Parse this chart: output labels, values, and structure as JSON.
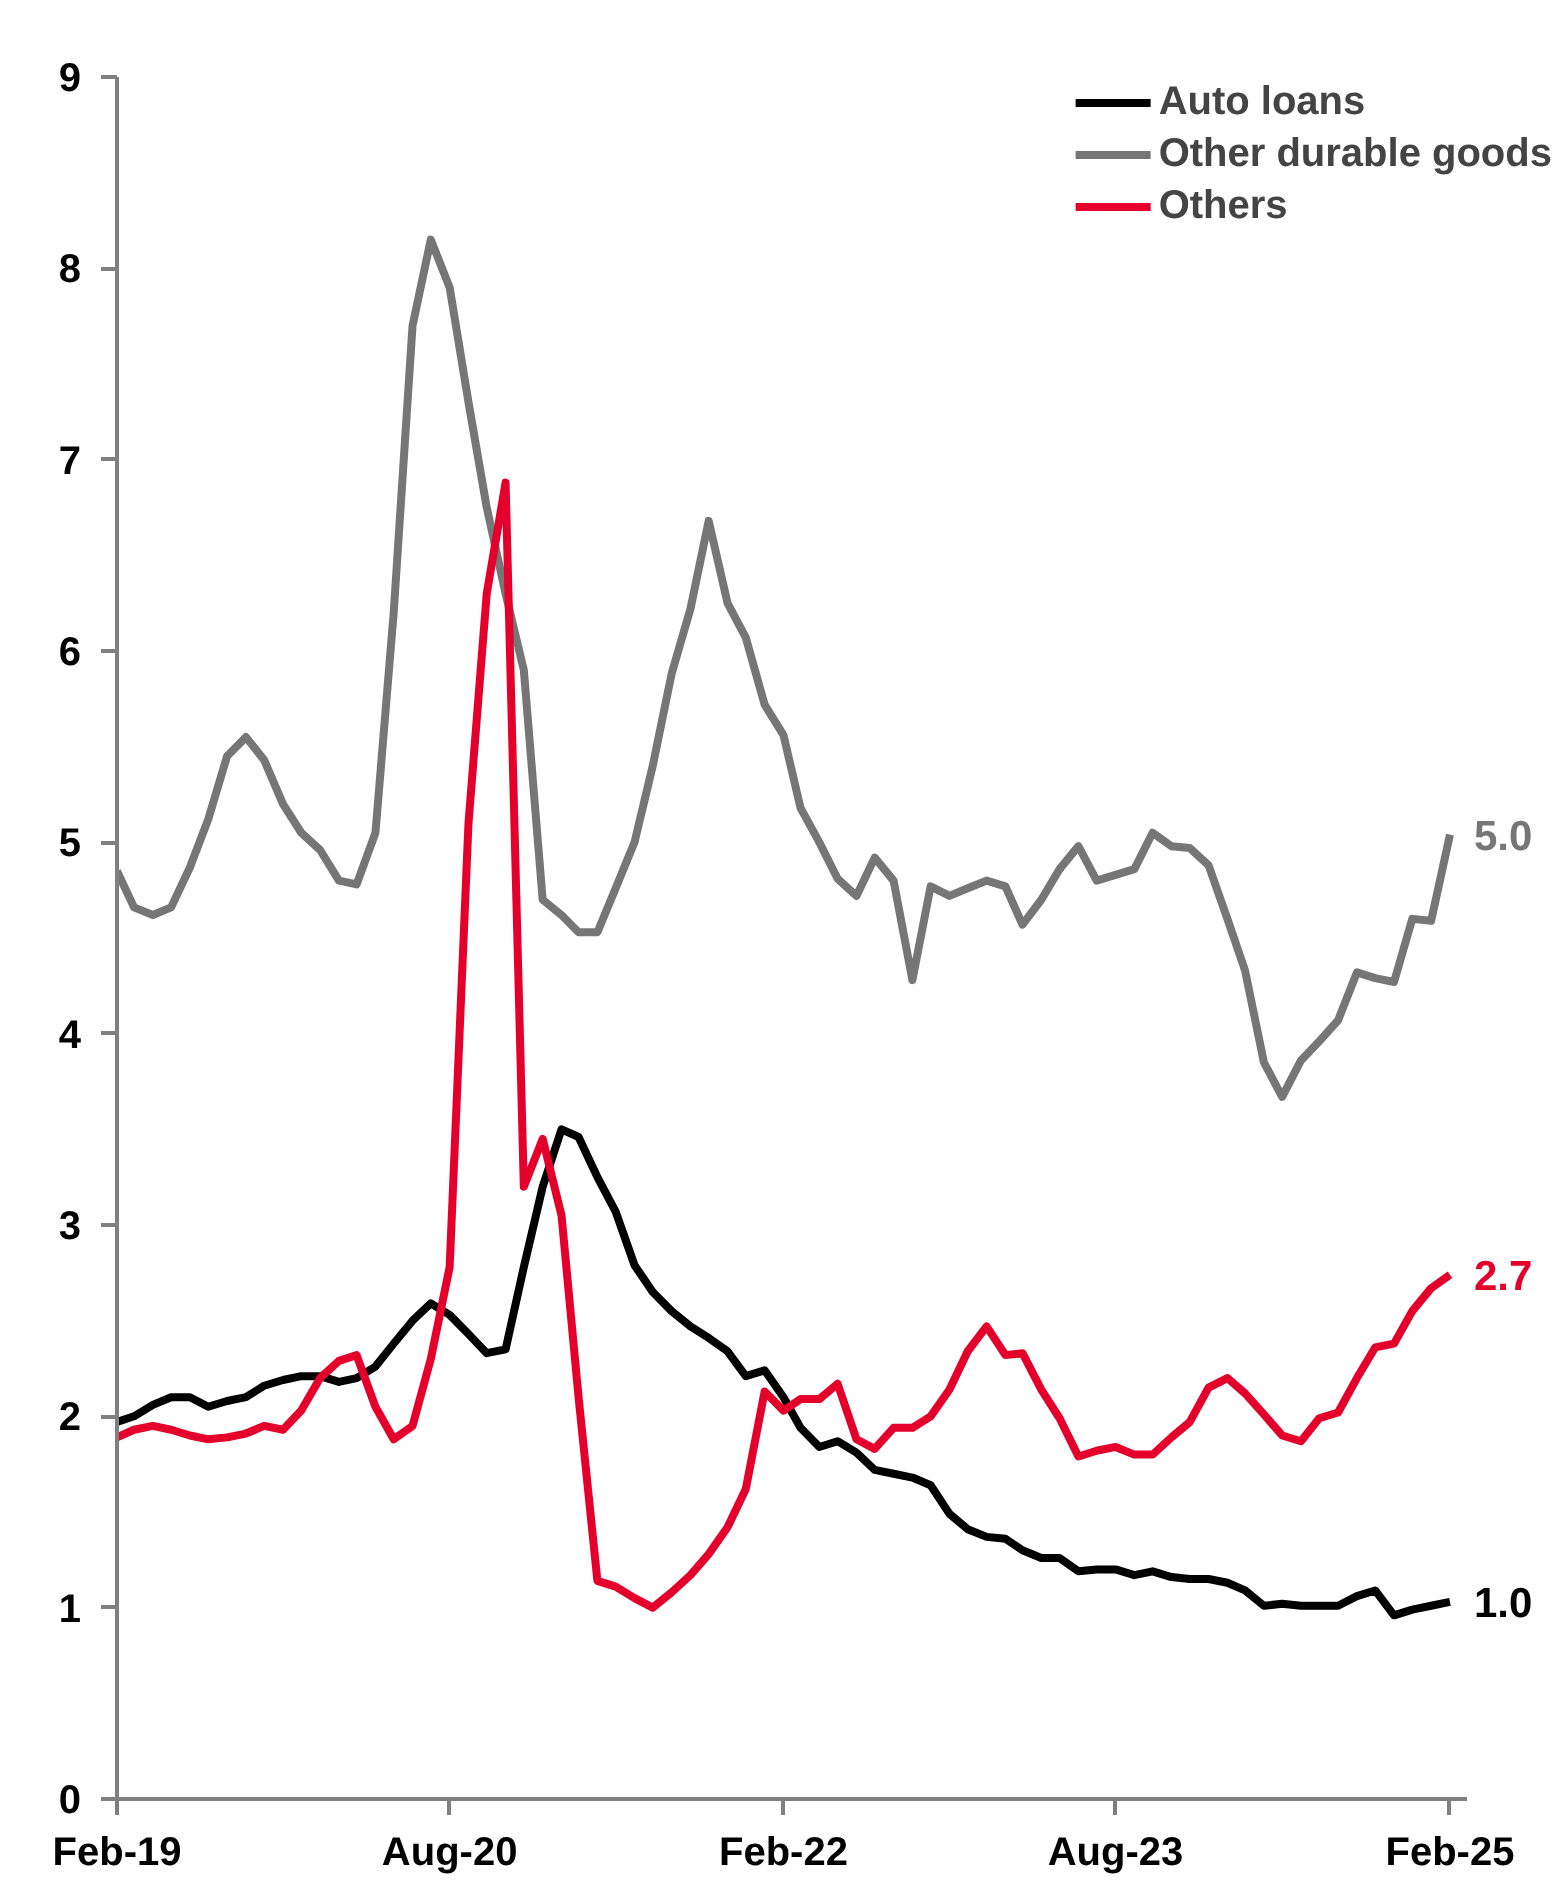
{
  "chart_data": {
    "type": "line",
    "x": [
      "2019-02",
      "2019-03",
      "2019-04",
      "2019-05",
      "2019-06",
      "2019-07",
      "2019-08",
      "2019-09",
      "2019-10",
      "2019-11",
      "2019-12",
      "2020-01",
      "2020-02",
      "2020-03",
      "2020-04",
      "2020-05",
      "2020-06",
      "2020-07",
      "2020-08",
      "2020-09",
      "2020-10",
      "2020-11",
      "2020-12",
      "2021-01",
      "2021-02",
      "2021-03",
      "2021-04",
      "2021-05",
      "2021-06",
      "2021-07",
      "2021-08",
      "2021-09",
      "2021-10",
      "2021-11",
      "2021-12",
      "2022-01",
      "2022-02",
      "2022-03",
      "2022-04",
      "2022-05",
      "2022-06",
      "2022-07",
      "2022-08",
      "2022-09",
      "2022-10",
      "2022-11",
      "2022-12",
      "2023-01",
      "2023-02",
      "2023-03",
      "2023-04",
      "2023-05",
      "2023-06",
      "2023-07",
      "2023-08",
      "2023-09",
      "2023-10",
      "2023-11",
      "2023-12",
      "2024-01",
      "2024-02",
      "2024-03",
      "2024-04",
      "2024-05",
      "2024-06",
      "2024-07",
      "2024-08",
      "2024-09",
      "2024-10",
      "2024-11",
      "2024-12",
      "2025-01",
      "2025-02"
    ],
    "series": [
      {
        "name": "Auto loans",
        "color": "#000000",
        "values": [
          1.97,
          2.0,
          2.06,
          2.1,
          2.1,
          2.05,
          2.08,
          2.1,
          2.16,
          2.19,
          2.21,
          2.21,
          2.18,
          2.2,
          2.26,
          2.38,
          2.5,
          2.59,
          2.53,
          2.43,
          2.33,
          2.35,
          2.78,
          3.2,
          3.5,
          3.46,
          3.25,
          3.07,
          2.79,
          2.65,
          2.55,
          2.47,
          2.41,
          2.34,
          2.21,
          2.24,
          2.1,
          1.94,
          1.84,
          1.87,
          1.81,
          1.72,
          1.7,
          1.68,
          1.64,
          1.49,
          1.41,
          1.37,
          1.36,
          1.3,
          1.26,
          1.26,
          1.19,
          1.2,
          1.2,
          1.17,
          1.19,
          1.16,
          1.15,
          1.15,
          1.13,
          1.09,
          1.01,
          1.02,
          1.01,
          1.01,
          1.01,
          1.06,
          1.09,
          0.96,
          0.99,
          1.01,
          1.03
        ]
      },
      {
        "name": "Other durable goods",
        "color": "#767676",
        "values": [
          4.85,
          4.66,
          4.62,
          4.66,
          4.87,
          5.12,
          5.45,
          5.55,
          5.43,
          5.2,
          5.05,
          4.96,
          4.8,
          4.78,
          5.05,
          6.2,
          7.7,
          8.15,
          7.9,
          7.3,
          6.75,
          6.3,
          5.9,
          4.7,
          4.62,
          4.53,
          4.53,
          4.76,
          5.0,
          5.4,
          5.88,
          6.22,
          6.68,
          6.25,
          6.07,
          5.72,
          5.56,
          5.18,
          5.0,
          4.81,
          4.72,
          4.92,
          4.8,
          4.28,
          4.77,
          4.72,
          4.76,
          4.8,
          4.77,
          4.57,
          4.7,
          4.86,
          4.98,
          4.8,
          4.83,
          4.86,
          5.05,
          4.98,
          4.97,
          4.88,
          4.6,
          4.33,
          3.85,
          3.67,
          3.86,
          3.96,
          4.07,
          4.32,
          4.29,
          4.27,
          4.6,
          4.59,
          5.04
        ]
      },
      {
        "name": "Others",
        "color": "#e4002b",
        "values": [
          1.89,
          1.93,
          1.95,
          1.93,
          1.9,
          1.88,
          1.89,
          1.91,
          1.95,
          1.93,
          2.03,
          2.2,
          2.29,
          2.32,
          2.05,
          1.88,
          1.95,
          2.3,
          2.78,
          5.1,
          6.3,
          6.88,
          3.2,
          3.45,
          3.05,
          2.1,
          1.14,
          1.11,
          1.05,
          1.0,
          1.08,
          1.17,
          1.28,
          1.42,
          1.62,
          2.13,
          2.03,
          2.09,
          2.09,
          2.17,
          1.88,
          1.83,
          1.94,
          1.94,
          2.0,
          2.14,
          2.34,
          2.47,
          2.32,
          2.33,
          2.14,
          1.99,
          1.79,
          1.82,
          1.84,
          1.8,
          1.8,
          1.89,
          1.97,
          2.15,
          2.2,
          2.12,
          2.01,
          1.9,
          1.87,
          1.99,
          2.02,
          2.2,
          2.36,
          2.38,
          2.55,
          2.67,
          2.74
        ]
      }
    ],
    "annotations": [
      {
        "text": "1.0",
        "x": "2025-02",
        "y": 1.03
      },
      {
        "text": "5.0",
        "x": "2025-02",
        "y": 5.04
      },
      {
        "text": "2.7",
        "x": "2025-02",
        "y": 2.74
      }
    ],
    "xlim": [
      "2019-02",
      "2025-03"
    ],
    "xticks": [
      {
        "value": "2019-02",
        "label": "Feb-19"
      },
      {
        "value": "2020-08",
        "label": "Aug-20"
      },
      {
        "value": "2022-02",
        "label": "Feb-22"
      },
      {
        "value": "2023-08",
        "label": "Aug-23"
      },
      {
        "value": "2025-02",
        "label": "Feb-25"
      }
    ],
    "ylim": [
      0,
      9
    ],
    "yticks": [
      0,
      1,
      2,
      3,
      4,
      5,
      6,
      7,
      8,
      9
    ],
    "grid": false,
    "legend": "top right",
    "line_style": "solid",
    "marker": "none"
  }
}
